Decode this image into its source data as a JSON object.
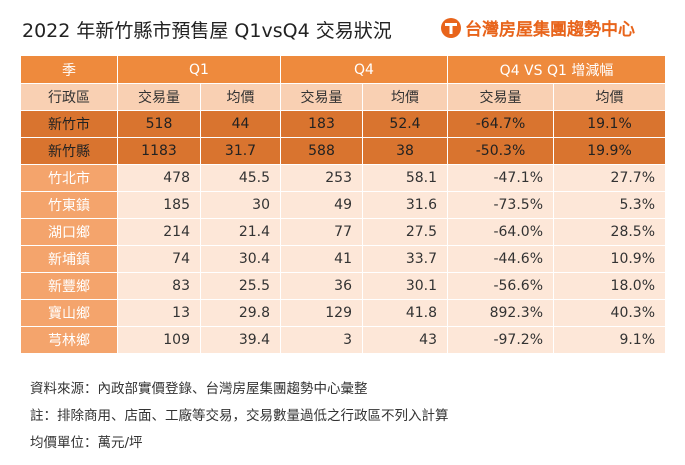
{
  "header": {
    "title": "2022 年新竹縣市預售屋 Q1vsQ4 交易狀況",
    "logo": "台灣房屋集團趨勢中心"
  },
  "table": {
    "group_header": [
      "季",
      "Q1",
      "Q4",
      "Q4 VS Q1 增減幅"
    ],
    "columns": [
      "行政區",
      "交易量",
      "均價",
      "交易量",
      "均價",
      "交易量",
      "均價"
    ],
    "rows": [
      [
        "新竹市",
        "518",
        "44",
        "183",
        "52.4",
        "-64.7%",
        "19.1%"
      ],
      [
        "新竹縣",
        "1183",
        "31.7",
        "588",
        "38",
        "-50.3%",
        "19.9%"
      ],
      [
        "竹北市",
        "478",
        "45.5",
        "253",
        "58.1",
        "-47.1%",
        "27.7%"
      ],
      [
        "竹東鎮",
        "185",
        "30",
        "49",
        "31.6",
        "-73.5%",
        "5.3%"
      ],
      [
        "湖口鄉",
        "214",
        "21.4",
        "77",
        "27.5",
        "-64.0%",
        "28.5%"
      ],
      [
        "新埔鎮",
        "74",
        "30.4",
        "41",
        "33.7",
        "-44.6%",
        "10.9%"
      ],
      [
        "新豐鄉",
        "83",
        "25.5",
        "36",
        "30.1",
        "-56.6%",
        "18.0%"
      ],
      [
        "寶山鄉",
        "13",
        "29.8",
        "129",
        "41.8",
        "892.3%",
        "40.3%"
      ],
      [
        "芎林鄉",
        "109",
        "39.4",
        "3",
        "43",
        "-97.2%",
        "9.1%"
      ]
    ]
  },
  "notes": [
    "資料來源：內政部實價登錄、台灣房屋集團趨勢中心彙整",
    "註：排除商用、店面、工廠等交易，交易數量過低之行政區不列入計算",
    "均價單位：萬元/坪"
  ]
}
